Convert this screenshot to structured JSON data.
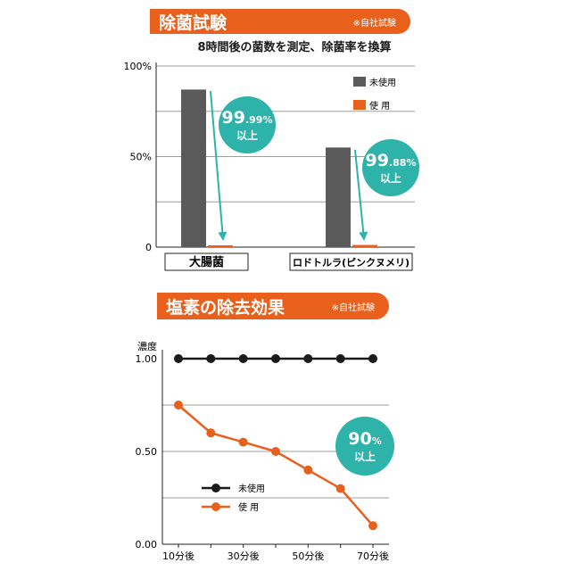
{
  "chart_data": [
    {
      "type": "bar",
      "title": "除菌試験",
      "note": "※自社試験",
      "subtitle": "8時間後の菌数を測定、除菌率を換算",
      "categories": [
        "大腸菌",
        "ロドトルラ(ピンクヌメリ)"
      ],
      "series": [
        {
          "name": "未使用",
          "values": [
            87,
            55
          ]
        },
        {
          "name": "使 用",
          "values": [
            0.9,
            1.2
          ]
        }
      ],
      "yticks": [
        "100%",
        "50%",
        "0"
      ],
      "ylim": [
        0,
        100
      ],
      "grid": true,
      "legend": "top-right",
      "badges": [
        {
          "value": "99",
          "decimal": ".99%",
          "label": "以上"
        },
        {
          "value": "99",
          "decimal": ".88%",
          "label": "以上"
        }
      ]
    },
    {
      "type": "line",
      "title": "塩素の除去効果",
      "note": "※自社試験",
      "ylabel": "濃度",
      "x": [
        10,
        20,
        30,
        40,
        50,
        60,
        70
      ],
      "xticks": [
        "10分後",
        "30分後",
        "50分後",
        "70分後"
      ],
      "yticks": [
        "1.00",
        "0.50",
        "0.00"
      ],
      "ylim": [
        0,
        1.0
      ],
      "grid": true,
      "legend": "bottom-left",
      "series": [
        {
          "name": "未使用",
          "values": [
            1.0,
            1.0,
            1.0,
            1.0,
            1.0,
            1.0,
            1.0
          ]
        },
        {
          "name": "使 用",
          "values": [
            0.75,
            0.6,
            0.55,
            0.5,
            0.4,
            0.3,
            0.1
          ]
        }
      ],
      "badge": {
        "value": "90",
        "unit": "%",
        "label": "以上"
      }
    }
  ],
  "colors": {
    "accent": "#e8601c",
    "bar_dark": "#5a5a5a",
    "badge": "#2db3aa",
    "line_dark": "#1a1a1a",
    "grid": "#9e9e9e"
  }
}
